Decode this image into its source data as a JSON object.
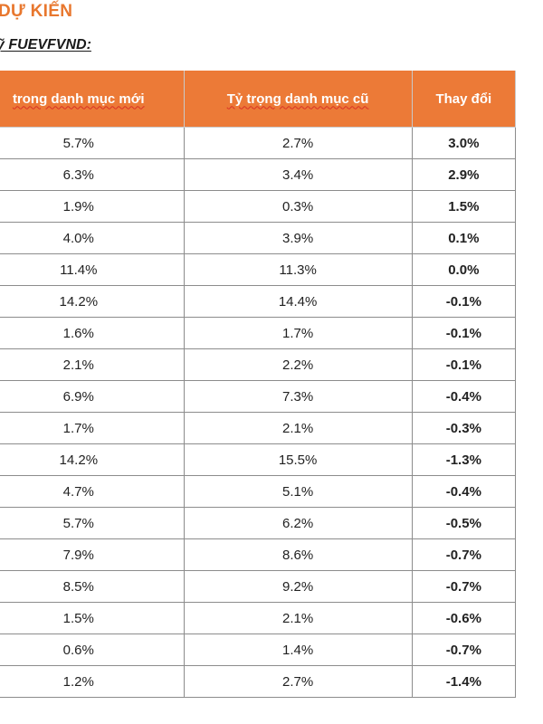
{
  "header": {
    "title": "DỰ KIẾN",
    "subtitle": "ỹ FUEVFVND:"
  },
  "table": {
    "columns": [
      "trong danh mục mới",
      "Tỷ trọng danh mục cũ",
      "Thay đổi"
    ],
    "rows": [
      {
        "new": "5.7%",
        "old": "2.7%",
        "change": "3.0%",
        "direction": "up"
      },
      {
        "new": "6.3%",
        "old": "3.4%",
        "change": "2.9%",
        "direction": "up"
      },
      {
        "new": "1.9%",
        "old": "0.3%",
        "change": "1.5%",
        "direction": "up"
      },
      {
        "new": "4.0%",
        "old": "3.9%",
        "change": "0.1%",
        "direction": "up"
      },
      {
        "new": "11.4%",
        "old": "11.3%",
        "change": "0.0%",
        "direction": "up"
      },
      {
        "new": "14.2%",
        "old": "14.4%",
        "change": "-0.1%",
        "direction": "down"
      },
      {
        "new": "1.6%",
        "old": "1.7%",
        "change": "-0.1%",
        "direction": "down"
      },
      {
        "new": "2.1%",
        "old": "2.2%",
        "change": "-0.1%",
        "direction": "down"
      },
      {
        "new": "6.9%",
        "old": "7.3%",
        "change": "-0.4%",
        "direction": "down"
      },
      {
        "new": "1.7%",
        "old": "2.1%",
        "change": "-0.3%",
        "direction": "down"
      },
      {
        "new": "14.2%",
        "old": "15.5%",
        "change": "-1.3%",
        "direction": "down"
      },
      {
        "new": "4.7%",
        "old": "5.1%",
        "change": "-0.4%",
        "direction": "down"
      },
      {
        "new": "5.7%",
        "old": "6.2%",
        "change": "-0.5%",
        "direction": "down"
      },
      {
        "new": "7.9%",
        "old": "8.6%",
        "change": "-0.7%",
        "direction": "down"
      },
      {
        "new": "8.5%",
        "old": "9.2%",
        "change": "-0.7%",
        "direction": "down"
      },
      {
        "new": "1.5%",
        "old": "2.1%",
        "change": "-0.6%",
        "direction": "down"
      },
      {
        "new": "0.6%",
        "old": "1.4%",
        "change": "-0.7%",
        "direction": "down"
      },
      {
        "new": "1.2%",
        "old": "2.7%",
        "change": "-1.4%",
        "direction": "down"
      }
    ]
  },
  "colors": {
    "header_bg": "#ec7a37",
    "title": "#e8772e",
    "positive": "#1e9a45",
    "negative": "#d42a2a"
  }
}
